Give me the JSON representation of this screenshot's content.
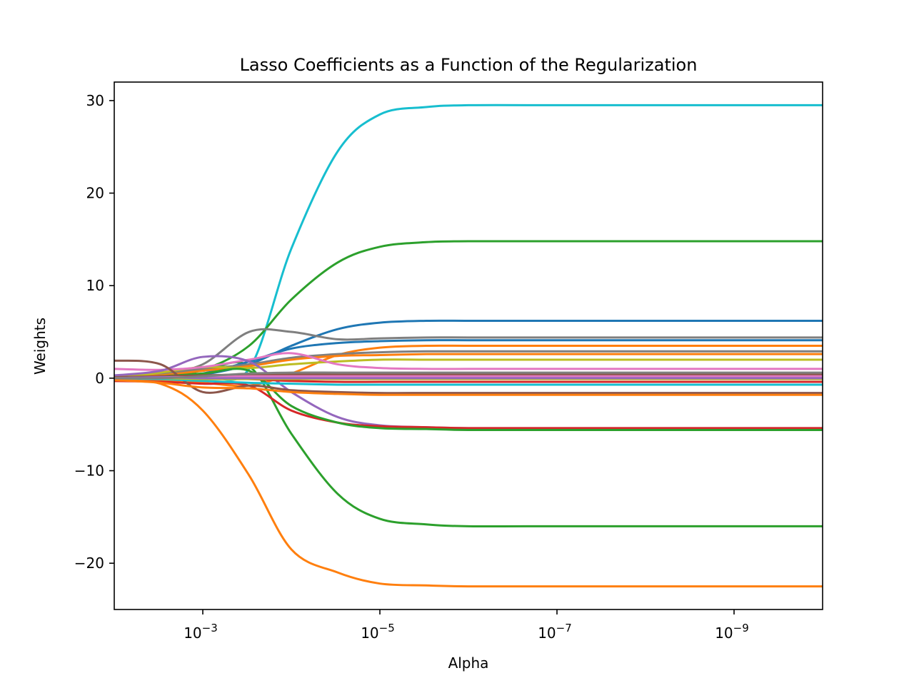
{
  "chart_data": {
    "type": "line",
    "title": "Lasso Coefficients as a Function of the Regularization",
    "xlabel": "Alpha",
    "ylabel": "Weights",
    "x_scale": "log",
    "x_reversed": true,
    "xlim": [
      0.01,
      1e-10
    ],
    "ylim": [
      -25,
      32
    ],
    "x_ticks": [
      0.001,
      1e-05,
      1e-07,
      1e-09
    ],
    "x_tick_labels": [
      {
        "base": "10",
        "exp": "−3"
      },
      {
        "base": "10",
        "exp": "−5"
      },
      {
        "base": "10",
        "exp": "−7"
      },
      {
        "base": "10",
        "exp": "−9"
      }
    ],
    "y_ticks": [
      -20,
      -10,
      0,
      10,
      20,
      30
    ],
    "y_tick_labels": [
      "−20",
      "−10",
      "0",
      "10",
      "20",
      "30"
    ],
    "grid": false,
    "legend": "none",
    "x": [
      0.01,
      0.003,
      0.001,
      0.0003,
      0.0001,
      3e-05,
      1e-05,
      3e-06,
      1e-06,
      1e-07,
      1e-08,
      1e-09,
      1e-10
    ],
    "series": [
      {
        "color": "#17becf",
        "values": [
          0.2,
          0.1,
          0.3,
          1.0,
          14.0,
          24.5,
          28.5,
          29.3,
          29.5,
          29.5,
          29.5,
          29.5,
          29.5
        ]
      },
      {
        "color": "#2ca02c",
        "values": [
          0.0,
          0.3,
          0.9,
          3.5,
          8.5,
          12.5,
          14.2,
          14.7,
          14.8,
          14.8,
          14.8,
          14.8,
          14.8
        ]
      },
      {
        "color": "#2ca02c",
        "values": [
          0.2,
          0.4,
          0.8,
          1.3,
          -6.0,
          -12.5,
          -15.2,
          -15.8,
          -16.0,
          -16.0,
          -16.0,
          -16.0,
          -16.0
        ]
      },
      {
        "color": "#ff7f0e",
        "values": [
          -0.3,
          -0.6,
          -3.5,
          -10.5,
          -18.5,
          -21.0,
          -22.2,
          -22.4,
          -22.5,
          -22.5,
          -22.5,
          -22.5,
          -22.5
        ]
      },
      {
        "color": "#1f77b4",
        "values": [
          0.1,
          0.2,
          0.4,
          1.5,
          3.5,
          5.3,
          6.0,
          6.2,
          6.2,
          6.2,
          6.2,
          6.2,
          6.2
        ]
      },
      {
        "color": "#7f7f7f",
        "values": [
          0.3,
          0.5,
          1.5,
          5.0,
          5.0,
          4.2,
          4.3,
          4.4,
          4.4,
          4.4,
          4.4,
          4.4,
          4.4
        ]
      },
      {
        "color": "#1f77b4",
        "values": [
          0.0,
          0.1,
          0.5,
          1.8,
          3.2,
          3.8,
          4.0,
          4.1,
          4.1,
          4.1,
          4.1,
          4.1,
          4.1
        ]
      },
      {
        "color": "#ff7f0e",
        "values": [
          0.0,
          -0.3,
          -0.5,
          -0.8,
          0.5,
          2.5,
          3.3,
          3.5,
          3.5,
          3.5,
          3.5,
          3.5,
          3.5
        ]
      },
      {
        "color": "#7f7f7f",
        "values": [
          0.2,
          0.5,
          1.0,
          1.5,
          2.2,
          2.6,
          2.8,
          2.9,
          2.9,
          2.9,
          2.9,
          2.9,
          2.9
        ]
      },
      {
        "color": "#ff7f0e",
        "values": [
          0.1,
          0.3,
          0.8,
          1.3,
          2.0,
          2.4,
          2.5,
          2.6,
          2.6,
          2.6,
          2.6,
          2.6,
          2.6
        ]
      },
      {
        "color": "#bcbd22",
        "values": [
          0.0,
          0.6,
          1.2,
          1.1,
          1.5,
          1.8,
          2.0,
          2.0,
          2.0,
          2.0,
          2.0,
          2.0,
          2.0
        ]
      },
      {
        "color": "#e377c2",
        "values": [
          1.0,
          0.9,
          1.2,
          2.0,
          2.7,
          1.5,
          1.1,
          1.0,
          1.0,
          1.0,
          1.0,
          1.0,
          1.0
        ]
      },
      {
        "color": "#9467bd",
        "values": [
          0.3,
          0.8,
          2.3,
          1.8,
          -1.5,
          -4.2,
          -5.1,
          -5.3,
          -5.4,
          -5.4,
          -5.4,
          -5.4,
          -5.4
        ]
      },
      {
        "color": "#d62728",
        "values": [
          -0.3,
          -0.4,
          -0.6,
          -0.8,
          -3.5,
          -4.8,
          -5.2,
          -5.3,
          -5.4,
          -5.4,
          -5.4,
          -5.4,
          -5.4
        ]
      },
      {
        "color": "#2ca02c",
        "values": [
          0.0,
          0.2,
          0.5,
          0.8,
          -3.0,
          -4.8,
          -5.4,
          -5.5,
          -5.6,
          -5.6,
          -5.6,
          -5.6,
          -5.6
        ]
      },
      {
        "color": "#8c564b",
        "values": [
          1.9,
          1.5,
          -1.5,
          -0.8,
          -1.3,
          -1.5,
          -1.6,
          -1.6,
          -1.6,
          -1.6,
          -1.6,
          -1.6,
          -1.6
        ]
      },
      {
        "color": "#ff7f0e",
        "values": [
          -0.2,
          -0.5,
          -1.0,
          -1.1,
          -1.5,
          -1.7,
          -1.8,
          -1.8,
          -1.8,
          -1.8,
          -1.8,
          -1.8,
          -1.8
        ]
      },
      {
        "color": "#d62728",
        "values": [
          0.0,
          0.1,
          0.0,
          -0.1,
          -0.3,
          -0.4,
          -0.4,
          -0.4,
          -0.4,
          -0.4,
          -0.4,
          -0.4,
          -0.4
        ]
      },
      {
        "color": "#17becf",
        "values": [
          0.0,
          -0.1,
          -0.3,
          -0.5,
          -0.6,
          -0.7,
          -0.7,
          -0.7,
          -0.7,
          -0.7,
          -0.7,
          -0.7,
          -0.7
        ]
      },
      {
        "color": "#8c564b",
        "values": [
          0.1,
          0.2,
          0.3,
          0.4,
          0.4,
          0.4,
          0.4,
          0.4,
          0.4,
          0.4,
          0.4,
          0.4,
          0.4
        ]
      },
      {
        "color": "#e377c2",
        "values": [
          0.0,
          0.1,
          0.1,
          0.2,
          0.2,
          0.2,
          0.2,
          0.2,
          0.2,
          0.2,
          0.2,
          0.2,
          0.2
        ]
      },
      {
        "color": "#bcbd22",
        "values": [
          0.0,
          0.0,
          -0.1,
          -0.1,
          -0.1,
          -0.1,
          -0.1,
          -0.1,
          -0.1,
          -0.1,
          -0.1,
          -0.1,
          -0.1
        ]
      },
      {
        "color": "#9467bd",
        "values": [
          0.0,
          0.1,
          0.0,
          0.0,
          0.0,
          0.0,
          0.0,
          0.0,
          0.0,
          0.0,
          0.0,
          0.0,
          0.0
        ]
      },
      {
        "color": "#7f7f7f",
        "values": [
          0.0,
          0.0,
          0.2,
          0.5,
          0.6,
          0.6,
          0.6,
          0.6,
          0.6,
          0.6,
          0.6,
          0.6,
          0.6
        ]
      }
    ]
  }
}
